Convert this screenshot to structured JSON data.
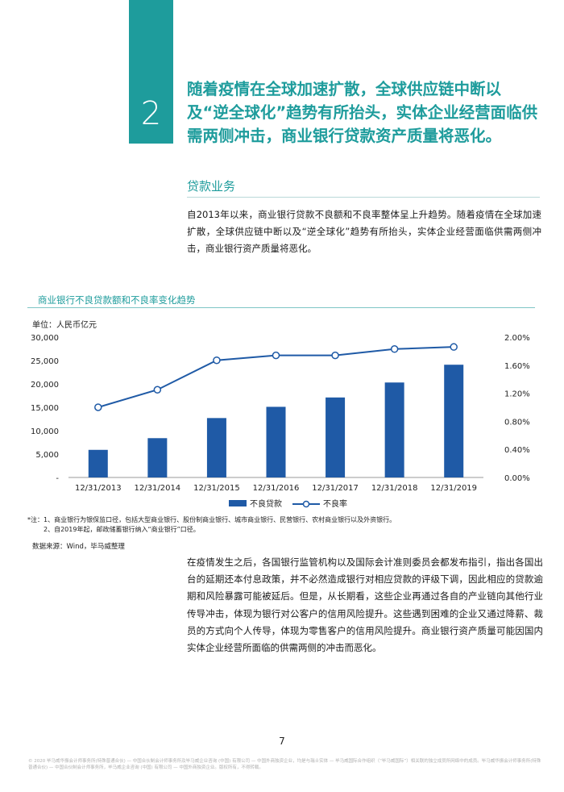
{
  "section_number": "2",
  "headline": "随着疫情在全球加速扩散，全球供应链中断以及“逆全球化”趋势有所抬头，实体企业经营面临供需两侧冲击，商业银行贷款资产质量将恶化。",
  "section_title": "贷款业务",
  "intro": "自2013年以来，商业银行贷款不良额和不良率整体呈上升趋势。随着疫情在全球加速扩散，全球供应链中断以及“逆全球化”趋势有所抬头，实体企业经营面临供需两侧冲击，商业银行资产质量将恶化。",
  "notes": {
    "line1": "*注：1、商业银行为银保监口径，包括大型商业银行、股份制商业银行、城市商业银行、民营银行、农村商业银行以及外资银行。",
    "line2": "2、自2019年起，邮政储蓄银行纳入“商业银行”口径。"
  },
  "source": "数据来源：Wind，毕马威整理",
  "body_paragraph": "在疫情发生之后，各国银行监管机构以及国际会计准则委员会都发布指引，指出各国出台的延期还本付息政策，并不必然造成银行对相应贷款的评级下调，因此相应的贷款逾期和风险暴露可能被延后。但是，从长期看，这些企业再通过各自的产业链向其他行业传导冲击，体现为银行对公客户的信用风险提升。这些遇到困难的企业又通过降薪、裁员的方式向个人传导，体现为零售客户的信用风险提升。商业银行资产质量可能因国内实体企业经营所面临的供需两侧的冲击而恶化。",
  "page_number": "7",
  "footer": "© 2020 毕马威华振会计师事务所(特殊普通合伙) — 中国合伙制会计师事务所及毕马威企业咨询 (中国) 有限公司 — 中国外商独资企业，均是与瑞士实体 — 毕马威国际合作组织（“毕马威国际”）相关联的独立成员所网络中的成员。毕马威华振会计师事务所(特殊普通合伙) — 中国合伙制会计师事务所，毕马威企业咨询 (中国) 有限公司 — 中国外商独资企业。版权所有，不得转载。",
  "colors": {
    "teal": "#1e9c9c",
    "bar": "#1f5aa6",
    "line": "#1f5aa6"
  },
  "chart_data": {
    "type": "bar",
    "title": "商业银行不良贷款额和不良率变化趋势",
    "unit_label": "单位：人民币亿元",
    "categories": [
      "12/31/2013",
      "12/31/2014",
      "12/31/2015",
      "12/31/2016",
      "12/31/2017",
      "12/31/2018",
      "12/31/2019"
    ],
    "series": [
      {
        "name": "不良贷款",
        "type": "bar",
        "axis": "left",
        "values": [
          5900,
          8400,
          12700,
          15100,
          17100,
          20300,
          24100
        ]
      },
      {
        "name": "不良率",
        "type": "line",
        "axis": "right",
        "values": [
          1.0,
          1.25,
          1.67,
          1.74,
          1.74,
          1.83,
          1.86
        ]
      }
    ],
    "left_axis": {
      "ticks": [
        "30,000",
        "25,000",
        "20,000",
        "15,000",
        "10,000",
        "5,000",
        "-"
      ],
      "ylim": [
        0,
        30000
      ]
    },
    "right_axis": {
      "ticks": [
        "2.00%",
        "1.60%",
        "1.20%",
        "0.80%",
        "0.40%",
        "0.00%"
      ],
      "ylim": [
        0,
        2.0
      ]
    },
    "legend_position": "bottom-center",
    "grid": false
  }
}
